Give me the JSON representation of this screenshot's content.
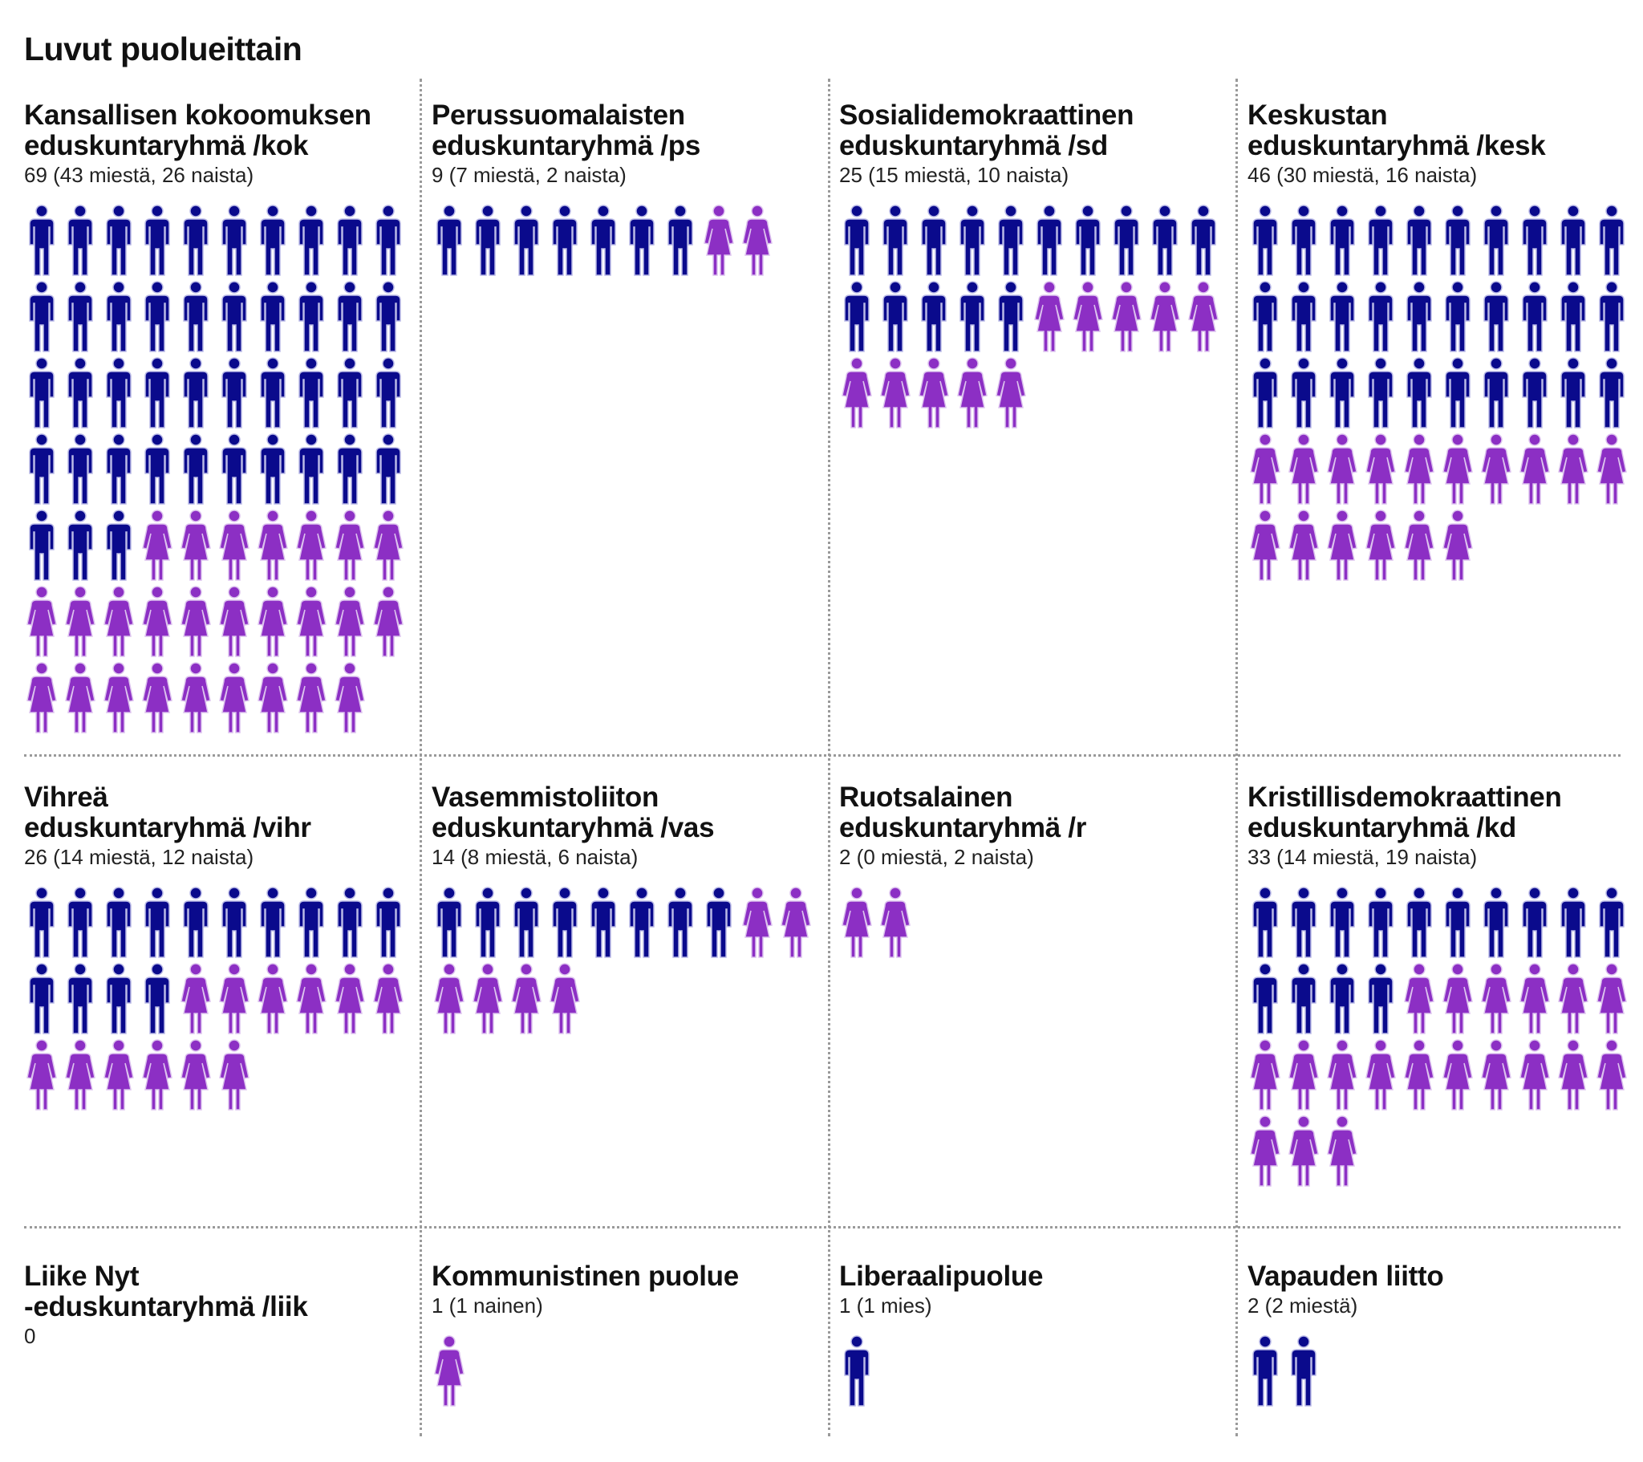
{
  "title": "Luvut puolueittain",
  "colors": {
    "man": "#0a0a8c",
    "woman": "#8c2fc4",
    "man_outline": "#b9b9e6",
    "woman_outline": "#dcc2ee",
    "divider": "#9a9a9a"
  },
  "icon_names": {
    "man": "man-icon",
    "woman": "woman-icon"
  },
  "chart_data": {
    "type": "table",
    "title": "Luvut puolueittain",
    "parties": [
      {
        "name": "Kansallisen kokoomuksen\neduskuntaryhmä /kok",
        "count_label": "69 (43 miestä, 26 naista)",
        "total": 69,
        "men": 43,
        "women": 26
      },
      {
        "name": "Perussuomalaisten\neduskuntaryhmä /ps",
        "count_label": "9 (7 miestä, 2 naista)",
        "total": 9,
        "men": 7,
        "women": 2
      },
      {
        "name": "Sosialidemokraattinen\neduskuntaryhmä /sd",
        "count_label": "25 (15 miestä, 10 naista)",
        "total": 25,
        "men": 15,
        "women": 10
      },
      {
        "name": "Keskustan\neduskuntaryhmä /kesk",
        "count_label": "46 (30 miestä, 16 naista)",
        "total": 46,
        "men": 30,
        "women": 16
      },
      {
        "name": "Vihreä\neduskuntaryhmä /vihr",
        "count_label": "26 (14 miestä, 12 naista)",
        "total": 26,
        "men": 14,
        "women": 12
      },
      {
        "name": "Vasemmistoliiton\neduskuntaryhmä /vas",
        "count_label": "14 (8 miestä, 6 naista)",
        "total": 14,
        "men": 8,
        "women": 6
      },
      {
        "name": "Ruotsalainen\neduskuntaryhmä /r",
        "count_label": "2 (0 miestä, 2 naista)",
        "total": 2,
        "men": 0,
        "women": 2
      },
      {
        "name": "Kristillisdemokraattinen\neduskuntaryhmä /kd",
        "count_label": "33 (14 miestä, 19 naista)",
        "total": 33,
        "men": 14,
        "women": 19
      },
      {
        "name": "Liike Nyt\n-eduskuntaryhmä /liik",
        "count_label": "0",
        "total": 0,
        "men": 0,
        "women": 0
      },
      {
        "name": "Kommunistinen puolue",
        "count_label": "1 (1 nainen)",
        "total": 1,
        "men": 0,
        "women": 1
      },
      {
        "name": "Liberaalipuolue",
        "count_label": "1 (1 mies)",
        "total": 1,
        "men": 1,
        "women": 0
      },
      {
        "name": "Vapauden liitto",
        "count_label": "2 (2 miestä)",
        "total": 2,
        "men": 2,
        "women": 0
      }
    ]
  }
}
